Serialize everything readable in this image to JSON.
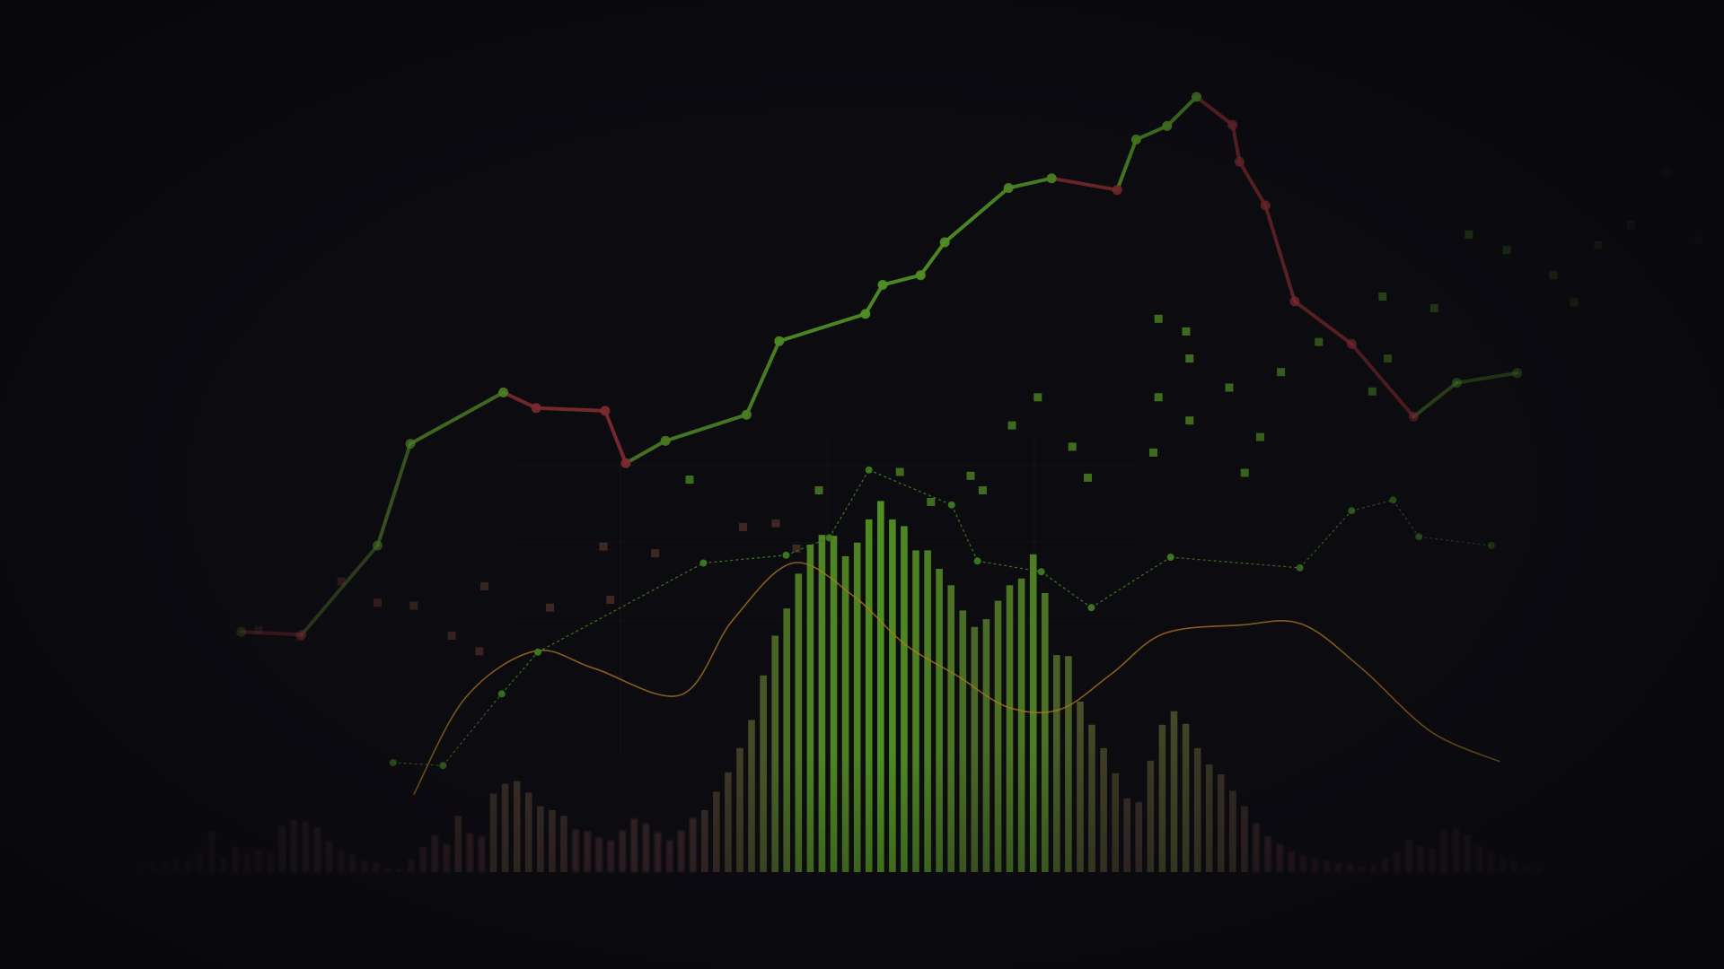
{
  "colors": {
    "background": "#0c0b10",
    "up": "#4e8e24",
    "down": "#7a2a2e",
    "bar_high": "#4f8f22",
    "bar_low": "#6e1f4a",
    "curve": "#b07a22",
    "dashed": "#3e7a22",
    "grid": "#ffffff"
  },
  "chart_data": {
    "type": "line",
    "title": "",
    "xlabel": "",
    "ylabel": "",
    "grid": false,
    "legend": "none",
    "xlim": [
      0,
      100
    ],
    "ylim": [
      0,
      100
    ],
    "layers": {
      "main_line": {
        "type": "line",
        "points": [
          [
            14,
            34.8
          ],
          [
            17.5,
            34.5
          ],
          [
            21.9,
            43.7
          ],
          [
            23.8,
            54.2
          ],
          [
            29.2,
            59.5
          ],
          [
            31.1,
            57.9
          ],
          [
            35.1,
            57.6
          ],
          [
            36.3,
            52.2
          ],
          [
            38.6,
            54.5
          ],
          [
            43.3,
            57.2
          ],
          [
            45.2,
            64.8
          ],
          [
            50.2,
            67.6
          ],
          [
            51.2,
            70.6
          ],
          [
            53.4,
            71.6
          ],
          [
            54.8,
            75
          ],
          [
            58.5,
            80.6
          ],
          [
            61,
            81.6
          ],
          [
            64.8,
            80.4
          ],
          [
            65.9,
            85.6
          ],
          [
            67.7,
            87
          ],
          [
            69.4,
            90
          ],
          [
            71.5,
            87.1
          ],
          [
            71.9,
            83.3
          ],
          [
            73.4,
            78.8
          ],
          [
            75.1,
            68.9
          ],
          [
            78.4,
            64.5
          ],
          [
            82,
            57
          ],
          [
            84.5,
            60.5
          ],
          [
            88,
            61.5
          ]
        ]
      },
      "dashed_line": {
        "type": "line",
        "points": [
          [
            22.8,
            21.3
          ],
          [
            25.7,
            21
          ],
          [
            29.1,
            28.4
          ],
          [
            31.2,
            32.7
          ],
          [
            40.8,
            41.9
          ],
          [
            45.6,
            42.7
          ],
          [
            48.1,
            44.5
          ],
          [
            50.4,
            51.5
          ],
          [
            55.2,
            47.9
          ],
          [
            56.7,
            42.1
          ],
          [
            60.4,
            41
          ],
          [
            63.3,
            37.3
          ],
          [
            67.9,
            42.5
          ],
          [
            75.4,
            41.4
          ],
          [
            78.4,
            47.3
          ],
          [
            80.8,
            48.4
          ],
          [
            82.3,
            44.6
          ],
          [
            86.5,
            43.7
          ]
        ]
      },
      "smooth_curve": {
        "type": "line",
        "points": [
          [
            24,
            18
          ],
          [
            27,
            28
          ],
          [
            31,
            32.8
          ],
          [
            34.5,
            31
          ],
          [
            39.5,
            28.3
          ],
          [
            42.5,
            36
          ],
          [
            46,
            41.9
          ],
          [
            49.5,
            38.5
          ],
          [
            52.5,
            33.5
          ],
          [
            55.5,
            30.3
          ],
          [
            58.5,
            27
          ],
          [
            61.5,
            26.8
          ],
          [
            64.5,
            30.5
          ],
          [
            67.5,
            34.6
          ],
          [
            72,
            35.5
          ],
          [
            75.5,
            35.6
          ],
          [
            79,
            31
          ],
          [
            83,
            24.5
          ],
          [
            87,
            21.4
          ]
        ]
      },
      "bars": {
        "type": "bar",
        "values": [
          0.9,
          1.1,
          0.9,
          1.3,
          1.2,
          2,
          4.3,
          1.5,
          2.6,
          1.9,
          2.3,
          1.9,
          4.8,
          5.4,
          5.2,
          4.6,
          3.2,
          2.2,
          1.8,
          1.2,
          1,
          0.5,
          0.4,
          1.3,
          2.6,
          3.8,
          2.9,
          5.8,
          4,
          3.7,
          8.1,
          9.1,
          9.4,
          8.2,
          6.8,
          6.4,
          5.8,
          4.4,
          4.2,
          3.6,
          3.3,
          4.3,
          5.5,
          5,
          4.1,
          3.3,
          4.3,
          5.6,
          6.4,
          8.3,
          10.3,
          12.8,
          15.7,
          20.3,
          24.4,
          27.2,
          30.8,
          33.8,
          34.8,
          34.7,
          32.6,
          34,
          36.4,
          38.3,
          36.4,
          35.7,
          33.2,
          33.2,
          31.3,
          29.6,
          27,
          25.3,
          26.1,
          28,
          29.6,
          30.3,
          32.8,
          28.8,
          22.4,
          22.3,
          17.6,
          15.2,
          12.8,
          10.2,
          7.6,
          7.2,
          11.5,
          15.2,
          16.6,
          15.3,
          12.8,
          11.1,
          10.1,
          8.4,
          6.8,
          5,
          3.7,
          2.9,
          2.1,
          1.7,
          1.4,
          1.2,
          0.9,
          0.9,
          0.6,
          0.7,
          1.4,
          2.1,
          3.3,
          2.7,
          2.4,
          4.2,
          4.5,
          3.8,
          2.7,
          2.1,
          1.6,
          1.2,
          0.9,
          0.7
        ]
      },
      "scatter": {
        "type": "scatter",
        "points": [
          [
            15,
            35
          ],
          [
            17.4,
            34.3
          ],
          [
            19.8,
            40
          ],
          [
            21.9,
            37.8
          ],
          [
            24,
            37.5
          ],
          [
            26.2,
            34.4
          ],
          [
            27.8,
            32.8
          ],
          [
            28.1,
            39.5
          ],
          [
            31.9,
            37.3
          ],
          [
            35,
            43.6
          ],
          [
            35.4,
            38.1
          ],
          [
            38,
            42.9
          ],
          [
            40,
            50.5
          ],
          [
            43.1,
            45.6
          ],
          [
            45,
            46
          ],
          [
            46.2,
            43.4
          ],
          [
            47.5,
            49.4
          ],
          [
            52.2,
            51.3
          ],
          [
            54,
            48.2
          ],
          [
            56.3,
            50.9
          ],
          [
            57,
            49.4
          ],
          [
            58.7,
            56.1
          ],
          [
            60.2,
            59
          ],
          [
            62.2,
            53.9
          ],
          [
            63.1,
            50.7
          ],
          [
            66.9,
            53.3
          ],
          [
            67.2,
            59
          ],
          [
            67.2,
            67.1
          ],
          [
            68.8,
            65.8
          ],
          [
            69,
            63
          ],
          [
            69,
            56.6
          ],
          [
            71.3,
            60
          ],
          [
            72.2,
            51.2
          ],
          [
            73.1,
            54.9
          ],
          [
            74.3,
            61.6
          ],
          [
            76.5,
            64.7
          ],
          [
            79.6,
            59.6
          ],
          [
            80.5,
            63
          ],
          [
            80.2,
            69.4
          ],
          [
            83.2,
            68.2
          ],
          [
            85.2,
            75.8
          ],
          [
            87.4,
            74.2
          ],
          [
            90.1,
            71.6
          ],
          [
            91.3,
            68.8
          ],
          [
            92.7,
            74.7
          ],
          [
            94.6,
            76.8
          ],
          [
            96.7,
            82.2
          ],
          [
            98.5,
            75.2
          ]
        ]
      }
    }
  }
}
